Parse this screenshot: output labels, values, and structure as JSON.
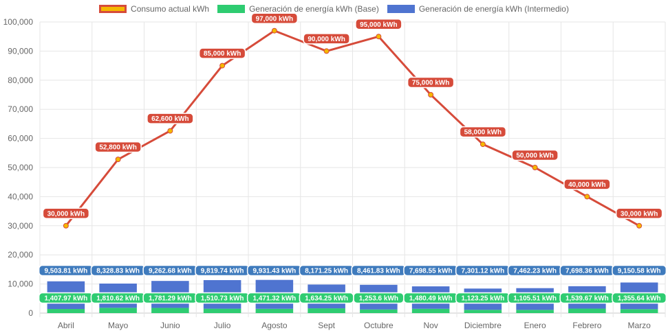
{
  "chart_data": {
    "type": "bar",
    "categories": [
      "Abril",
      "Mayo",
      "Junio",
      "Julio",
      "Agosto",
      "Sept",
      "Octubre",
      "Nov",
      "Diciembre",
      "Enero",
      "Febrero",
      "Marzo"
    ],
    "ylim": [
      0,
      100000
    ],
    "yticks": [
      "0",
      "10,000",
      "20,000",
      "30,000",
      "40,000",
      "50,000",
      "60,000",
      "70,000",
      "80,000",
      "90,000",
      "100,000"
    ],
    "grid": true,
    "legend_position": "top",
    "series": [
      {
        "name": "Consumo actual kWh",
        "type": "line",
        "color": "#d64b3a",
        "point_color": "#f5b800",
        "values": [
          30000,
          52800,
          62600,
          85000,
          97000,
          90000,
          95000,
          75000,
          58000,
          50000,
          40000,
          30000
        ],
        "labels": [
          "30,000 kWh",
          "52,800 kWh",
          "62,600 kWh",
          "85,000 kWh",
          "97,000 kWh",
          "90,000 kWh",
          "95,000 kWh",
          "75,000 kWh",
          "58,000 kWh",
          "50,000 kWh",
          "40,000 kWh",
          "30,000 kWh"
        ]
      },
      {
        "name": "Generación de energía kWh (Base)",
        "type": "bar",
        "color": "#2ecc71",
        "values": [
          1407.97,
          1810.62,
          1781.29,
          1510.73,
          1471.32,
          1634.25,
          1253.6,
          1480.49,
          1123.25,
          1105.51,
          1539.67,
          1355.64
        ],
        "labels": [
          "1,407.97 kWh",
          "1,810.62 kWh",
          "1,781.29 kWh",
          "1,510.73 kWh",
          "1,471.32 kWh",
          "1,634.25 kWh",
          "1,253.6 kWh",
          "1,480.49 kWh",
          "1,123.25 kWh",
          "1,105.51 kWh",
          "1,539.67 kWh",
          "1,355.64 kWh"
        ]
      },
      {
        "name": "Generación de energía kWh (Intermedio)",
        "type": "bar",
        "color": "#4f74d0",
        "values": [
          9503.81,
          8328.83,
          9262.68,
          9819.74,
          9931.43,
          8171.25,
          8461.83,
          7698.55,
          7301.12,
          7462.23,
          7698.36,
          9150.58
        ],
        "labels": [
          "9,503.81 kWh",
          "8,328.83 kWh",
          "9,262.68 kWh",
          "9,819.74 kWh",
          "9,931.43 kWh",
          "8,171.25 kWh",
          "8,461.83 kWh",
          "7,698.55 kWh",
          "7,301.12 kWh",
          "7,462.23 kWh",
          "7,698.36 kWh",
          "9,150.58 kWh"
        ]
      }
    ]
  },
  "label_colors": {
    "line_label_bg": "#d64b3a",
    "base_label_bg": "#2ecc71",
    "intermedio_label_bg": "#3f7bbd"
  }
}
